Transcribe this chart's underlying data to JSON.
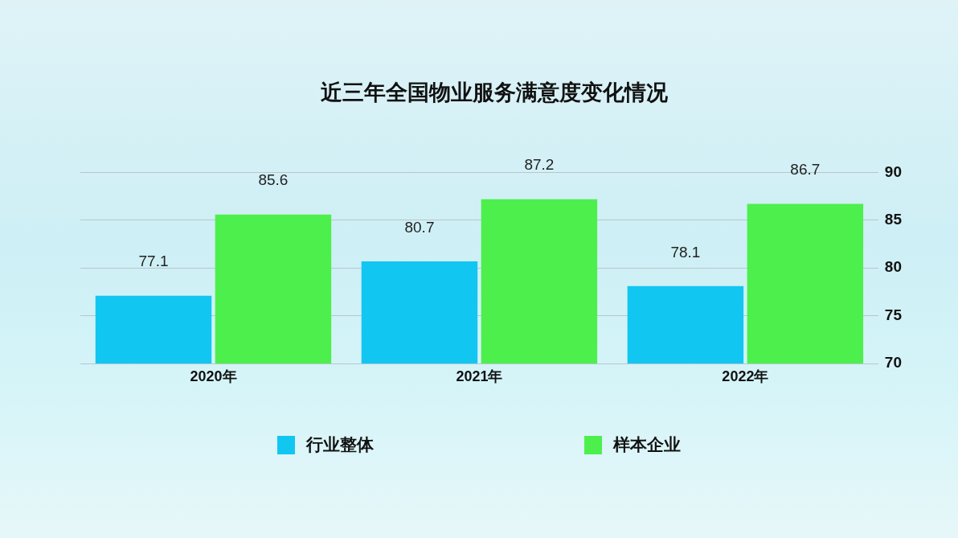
{
  "chart_data": {
    "type": "bar",
    "title": "近三年全国物业服务满意度变化情况",
    "categories": [
      "2020年",
      "2021年",
      "2022年"
    ],
    "series": [
      {
        "name": "行业整体",
        "color": "#12c6f2",
        "values": [
          77.1,
          80.7,
          78.1
        ]
      },
      {
        "name": "样本企业",
        "color": "#4def4d",
        "values": [
          85.6,
          87.2,
          86.7
        ]
      }
    ],
    "ylim": [
      70,
      90
    ],
    "yticks": [
      70,
      75,
      80,
      85,
      90
    ],
    "grid": "y",
    "legend": "bottom",
    "data_labels": true
  }
}
